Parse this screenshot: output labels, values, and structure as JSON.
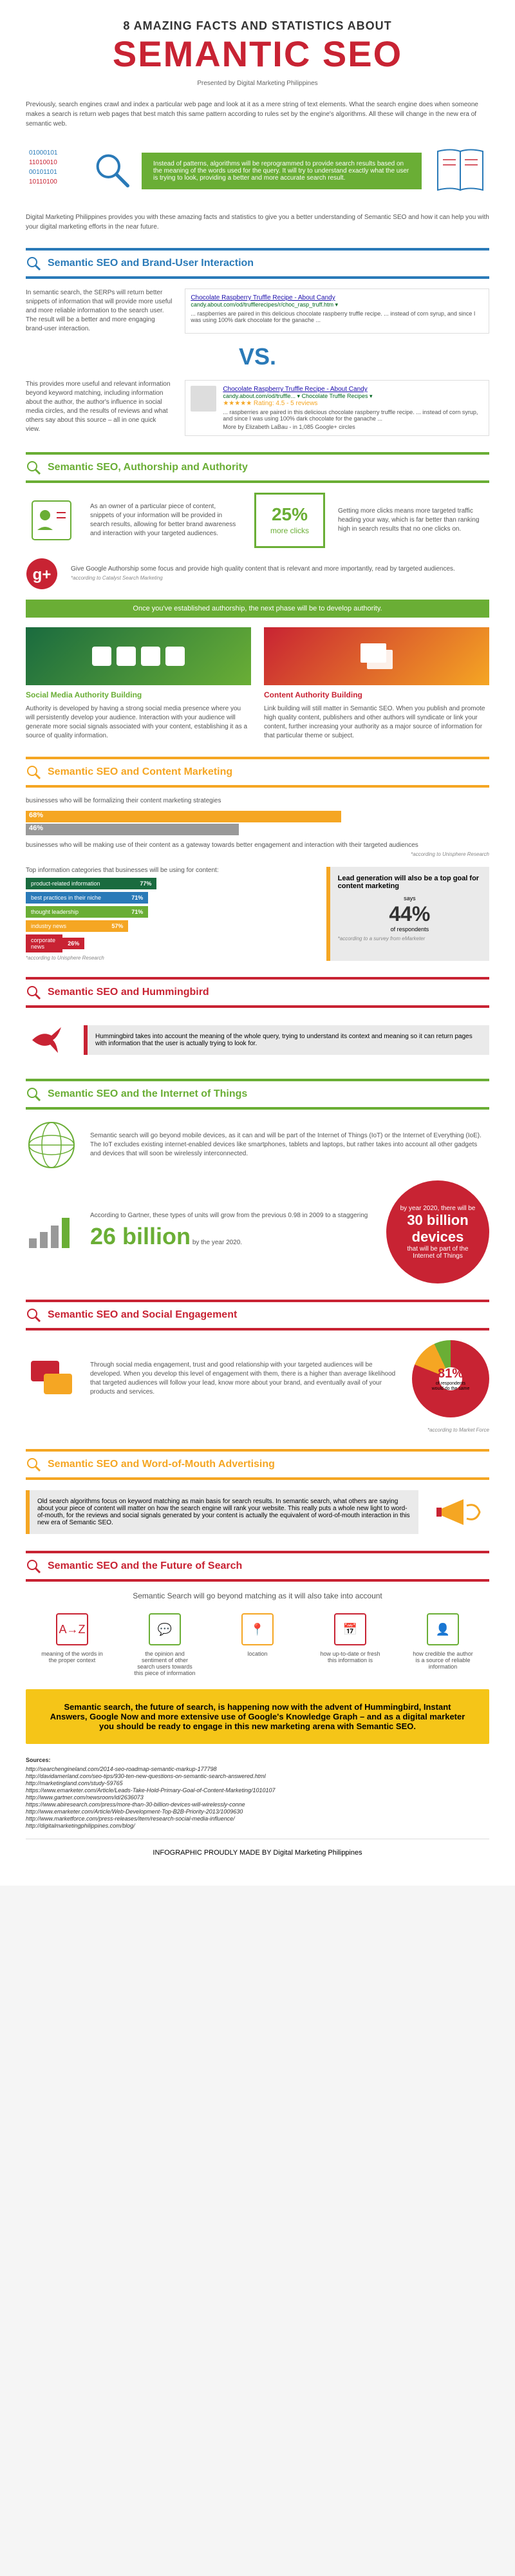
{
  "header": {
    "small": "8 AMAZING FACTS AND STATISTICS ABOUT",
    "large": "SEMANTIC SEO",
    "large_color": "#c82333",
    "presented": "Presented by Digital Marketing Philippines"
  },
  "intro": "Previously, search engines crawl and index a particular web page and look at it as a mere string of text elements. What the search engine does when someone makes a search is return web pages that best match this same pattern according to rules set by the engine's algorithms. All these will change in the new era of semantic web.",
  "green_intro": "Instead of patterns, algorithms will be reprogrammed to provide search results based on the meaning of the words used for the query. It will try to understand exactly what the user is trying to look, providing a better and more accurate search result.",
  "intro2": "Digital Marketing Philippines provides you with these amazing facts and statistics to give you a better understanding of Semantic SEO and how it can help you with your digital marketing efforts in the near future.",
  "sections": [
    {
      "title": "Semantic SEO and Brand-User Interaction",
      "color": "#2a7ab8"
    },
    {
      "title": "Semantic SEO, Authorship and Authority",
      "color": "#6aae35"
    },
    {
      "title": "Semantic SEO and Content Marketing",
      "color": "#f5a623"
    },
    {
      "title": "Semantic SEO and Hummingbird",
      "color": "#c82333"
    },
    {
      "title": "Semantic SEO and the Internet of Things",
      "color": "#6aae35"
    },
    {
      "title": "Semantic SEO and Social Engagement",
      "color": "#c82333"
    },
    {
      "title": "Semantic SEO and Word-of-Mouth Advertising",
      "color": "#f5a623"
    },
    {
      "title": "Semantic SEO and the Future of Search",
      "color": "#c82333"
    }
  ],
  "s1": {
    "txt1": "In semantic search, the SERPs will return better snippets of information that will provide more useful and more reliable information to the search user. The result will be a better and more engaging brand-user interaction.",
    "serp1": {
      "title": "Chocolate Raspberry Truffle Recipe - About Candy",
      "url": "candy.about.com/od/trufflerecipes/r/choc_rasp_truff.htm ▾",
      "desc": "... raspberries are paired in this delicious chocolate raspberry truffle recipe. ... instead of corn syrup, and since I was using 100% dark chocolate for the ganache ..."
    },
    "vs": "VS.",
    "txt2": "This provides more useful and relevant information beyond keyword matching, including information about the author, the author's influence in social media circles, and the results of reviews and what others say about this source – all in one quick view.",
    "serp2": {
      "title": "Chocolate Raspberry Truffle Recipe - About Candy",
      "url": "candy.about.com/od/truffle... ▾ Chocolate Truffle Recipes ▾",
      "rating": "★★★★★ Rating: 4.5 - 5 reviews",
      "desc": "... raspberries are paired in this delicious chocolate raspberry truffle recipe. ... instead of corn syrup, and since I was using 100% dark chocolate for the ganache ...",
      "more": "More by Elizabeth LaBau - in 1,085 Google+ circles"
    },
    "vs_color": "#2a7ab8"
  },
  "s2": {
    "txt1": "As an owner of a particular piece of content, snippets of your information will be provided in search results, allowing for better brand awareness and interaction with your targeted audiences.",
    "stat_num": "25%",
    "stat_lbl": "more clicks",
    "stat_color": "#6aae35",
    "txt2": "Getting more clicks means more targeted traffic heading your way, which is far better than ranking high in search results that no one clicks on.",
    "txt3": "Give Google Authorship some focus and provide high quality content that is relevant and more importantly, read by targeted audiences.",
    "note3": "*according to Catalyst Search Marketing",
    "green_bar": "Once you've established authorship, the next phase will be to develop authority.",
    "col1_title": "Social Media Authority Building",
    "col1_txt": "Authority is developed by having a strong social media presence where you will persistently develop your audience. Interaction with your audience will generate more social signals associated with your content, establishing it as a source of quality information.",
    "col2_title": "Content Authority Building",
    "col2_txt": "Link building will still matter in Semantic SEO. When you publish and promote high quality content, publishers and other authors will syndicate or link your content, further increasing your authority as a major source of information for that particular theme or subject."
  },
  "s3": {
    "label1": "businesses who will be formalizing their content marketing strategies",
    "pct1": "68%",
    "pct2": "46%",
    "label2": "businesses who will be making use of their content as a gateway towards better engagement and interaction with their targeted audiences",
    "note1": "*according to Unisphere Research",
    "cat_label": "Top information categories that businesses will be using for content:",
    "bars": [
      {
        "label": "product-related information",
        "val": "77%",
        "w": 77,
        "color": "#1a6b3f"
      },
      {
        "label": "best practices in their niche",
        "val": "71%",
        "w": 71,
        "color": "#2a7ab8"
      },
      {
        "label": "thought leadership",
        "val": "71%",
        "w": 71,
        "color": "#6aae35"
      },
      {
        "label": "industry news",
        "val": "57%",
        "w": 57,
        "color": "#f5a623"
      },
      {
        "label": "corporate news",
        "val": "26%",
        "w": 26,
        "color": "#c82333"
      }
    ],
    "note2": "*according to Unisphere Research",
    "side_title": "Lead generation will also be a top goal for content marketing",
    "side_pct": "44%",
    "side_sub": "says",
    "side_sub2": "of respondents",
    "note3": "*according to a survey from eMarketer"
  },
  "s4": {
    "txt": "Hummingbird takes into account the meaning of the whole query, trying to understand its context and meaning so it can return pages with information that the user is actually trying to look for."
  },
  "s5": {
    "txt1": "Semantic search will go beyond mobile devices, as it can and will be part of the Internet of Things (IoT) or the Internet of Everything (IoE). The IoT excludes existing internet-enabled devices like smartphones, tablets and laptops, but rather takes into account all other gadgets and devices that will soon be wirelessly interconnected.",
    "txt2": "According to Gartner, these types of units will grow from the previous 0.98 in 2009 to a staggering",
    "big_num": "26 billion",
    "big_sub": "by the year 2020.",
    "circle_top": "by year 2020, there will be",
    "circle_num": "30 billion devices",
    "circle_bot": "that will be part of the Internet of Things"
  },
  "s6": {
    "txt": "Through social media engagement, trust and good relationship with your targeted audiences will be developed. When you develop this level of engagement with them, there is a higher than average likelihood that targeted audiences will follow your lead, know more about your brand, and eventually avail of your products and services.",
    "pie_pct": "81%",
    "pie_sub": "of respondents would do the same",
    "note": "*according to Market Force"
  },
  "s7": {
    "txt": "Old search algorithms focus on keyword matching as main basis for search results. In semantic search, what others are saying about your piece of content will matter on how the search engine will rank your website. This really puts a whole new light to word-of-mouth, for the reviews and social signals generated by your content is actually the equivalent of word-of-mouth interaction in this new era of Semantic SEO."
  },
  "s8": {
    "intro": "Semantic Search will go beyond matching as it will also take into account",
    "icons": [
      {
        "label": "meaning of the words in the proper context",
        "color": "#c82333"
      },
      {
        "label": "the opinion and sentiment of other search users towards this piece of information",
        "color": "#6aae35"
      },
      {
        "label": "location",
        "color": "#f5a623"
      },
      {
        "label": "how up-to-date or fresh this information is",
        "color": "#c82333"
      },
      {
        "label": "how credible the author is a source of reliable information",
        "color": "#6aae35"
      }
    ],
    "yellow": "Semantic search, the future of search, is happening now with the advent of Hummingbird, Instant Answers, Google Now and more extensive use of Google's Knowledge Graph – and as a digital marketer you should be ready to engage in this new marketing arena with Semantic SEO."
  },
  "sources": {
    "title": "Sources:",
    "items": [
      "http://searchengineland.com/2014-seo-roadmap-semantic-markup-177798",
      "http://davidamerland.com/seo-tips/930-ten-new-questions-on-semantic-search-answered.html",
      "http://marketingland.com/study-59765",
      "https://www.emarketer.com/Article/Leads-Take-Hold-Primary-Goal-of-Content-Marketing/1010107",
      "http://www.gartner.com/newsroom/id/2636073",
      "https://www.abiresearch.com/press/more-than-30-billion-devices-will-wirelessly-conne",
      "http://www.emarketer.com/Article/Web-Development-Top-B2B-Priority-2013/1009630",
      "http://www.marketforce.com/press-releases/item/research-social-media-influence/",
      "http://digitalmarketingphilippines.com/blog/"
    ]
  },
  "footer": "INFOGRAPHIC PROUDLY MADE BY Digital Marketing Philippines"
}
